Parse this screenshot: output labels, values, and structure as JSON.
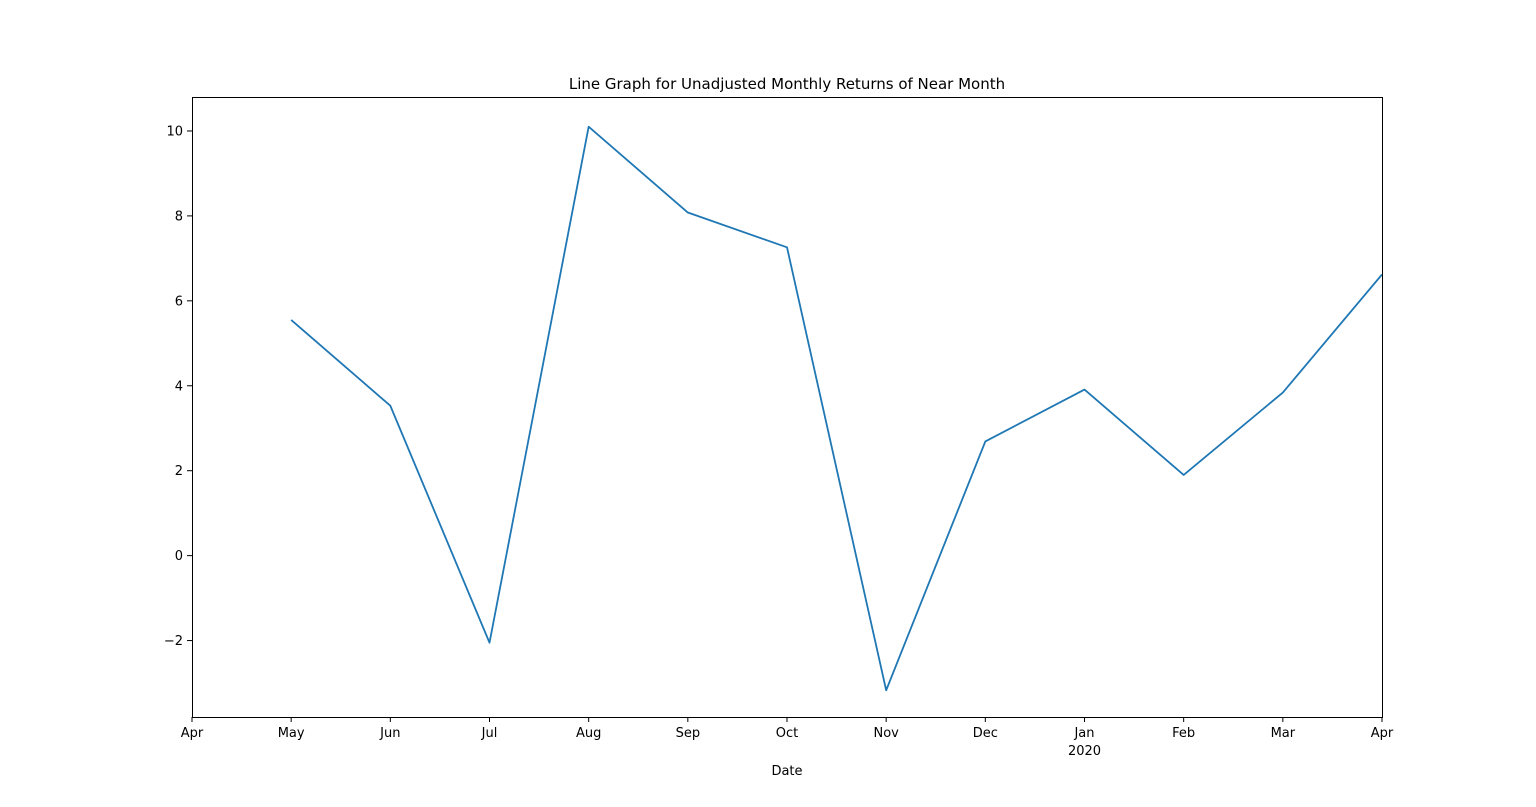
{
  "chart_data": {
    "type": "line",
    "title": "Line Graph for Unadjusted Monthly Returns of Near Month",
    "xlabel": "Date",
    "ylabel": "",
    "x_range": [
      "2019-04",
      "2020-04"
    ],
    "ylim": [
      -3.8,
      10.8
    ],
    "x_ticks": [
      {
        "x": "2019-04",
        "label": "Apr",
        "sublabel": ""
      },
      {
        "x": "2019-05",
        "label": "May",
        "sublabel": ""
      },
      {
        "x": "2019-06",
        "label": "Jun",
        "sublabel": ""
      },
      {
        "x": "2019-07",
        "label": "Jul",
        "sublabel": ""
      },
      {
        "x": "2019-08",
        "label": "Aug",
        "sublabel": ""
      },
      {
        "x": "2019-09",
        "label": "Sep",
        "sublabel": ""
      },
      {
        "x": "2019-10",
        "label": "Oct",
        "sublabel": ""
      },
      {
        "x": "2019-11",
        "label": "Nov",
        "sublabel": ""
      },
      {
        "x": "2019-12",
        "label": "Dec",
        "sublabel": ""
      },
      {
        "x": "2020-01",
        "label": "Jan",
        "sublabel": "2020"
      },
      {
        "x": "2020-02",
        "label": "Feb",
        "sublabel": ""
      },
      {
        "x": "2020-03",
        "label": "Mar",
        "sublabel": ""
      },
      {
        "x": "2020-04",
        "label": "Apr",
        "sublabel": ""
      }
    ],
    "y_ticks": [
      {
        "value": -2,
        "label": "−2"
      },
      {
        "value": 0,
        "label": "0"
      },
      {
        "value": 2,
        "label": "2"
      },
      {
        "value": 4,
        "label": "4"
      },
      {
        "value": 6,
        "label": "6"
      },
      {
        "value": 8,
        "label": "8"
      },
      {
        "value": 10,
        "label": "10"
      }
    ],
    "grid": false,
    "series": [
      {
        "color": "#1f77b4",
        "x": [
          "2019-05",
          "2019-06",
          "2019-07",
          "2019-08",
          "2019-09",
          "2019-10",
          "2019-11",
          "2019-12",
          "2020-01",
          "2020-02",
          "2020-03",
          "2020-04"
        ],
        "values": [
          5.55,
          3.53,
          -2.05,
          10.1,
          8.08,
          7.26,
          -3.17,
          2.69,
          3.91,
          1.9,
          3.84,
          6.62
        ]
      }
    ]
  }
}
